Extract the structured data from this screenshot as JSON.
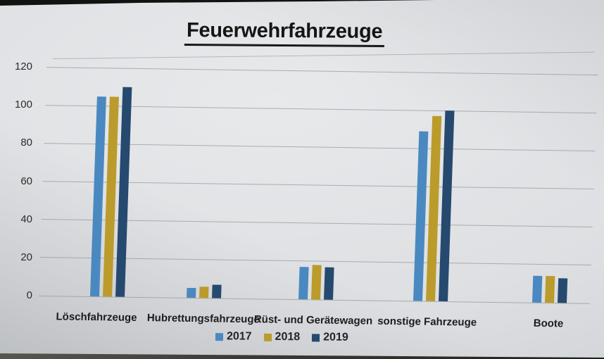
{
  "title": "Feuerwehrfahrzeuge",
  "chart_data": {
    "type": "bar",
    "title": "Feuerwehrfahrzeuge",
    "categories": [
      "Löschfahrzeuge",
      "Hubrettungsfahrzeuge",
      "Rüst- und Gerätewagen",
      "sonstige Fahrzeuge",
      "Boote"
    ],
    "series": [
      {
        "name": "2017",
        "color": "#4a89c0",
        "values": [
          105,
          5,
          17,
          89,
          14
        ]
      },
      {
        "name": "2018",
        "color": "#bb9b2b",
        "values": [
          105,
          6,
          18,
          97,
          14
        ]
      },
      {
        "name": "2019",
        "color": "#26496f",
        "values": [
          110,
          7,
          17,
          100,
          13
        ]
      }
    ],
    "xlabel": "",
    "ylabel": "",
    "ylim": [
      0,
      120
    ],
    "yticks": [
      0,
      20,
      40,
      60,
      80,
      100,
      120
    ],
    "grid": true,
    "legend_position": "bottom"
  }
}
